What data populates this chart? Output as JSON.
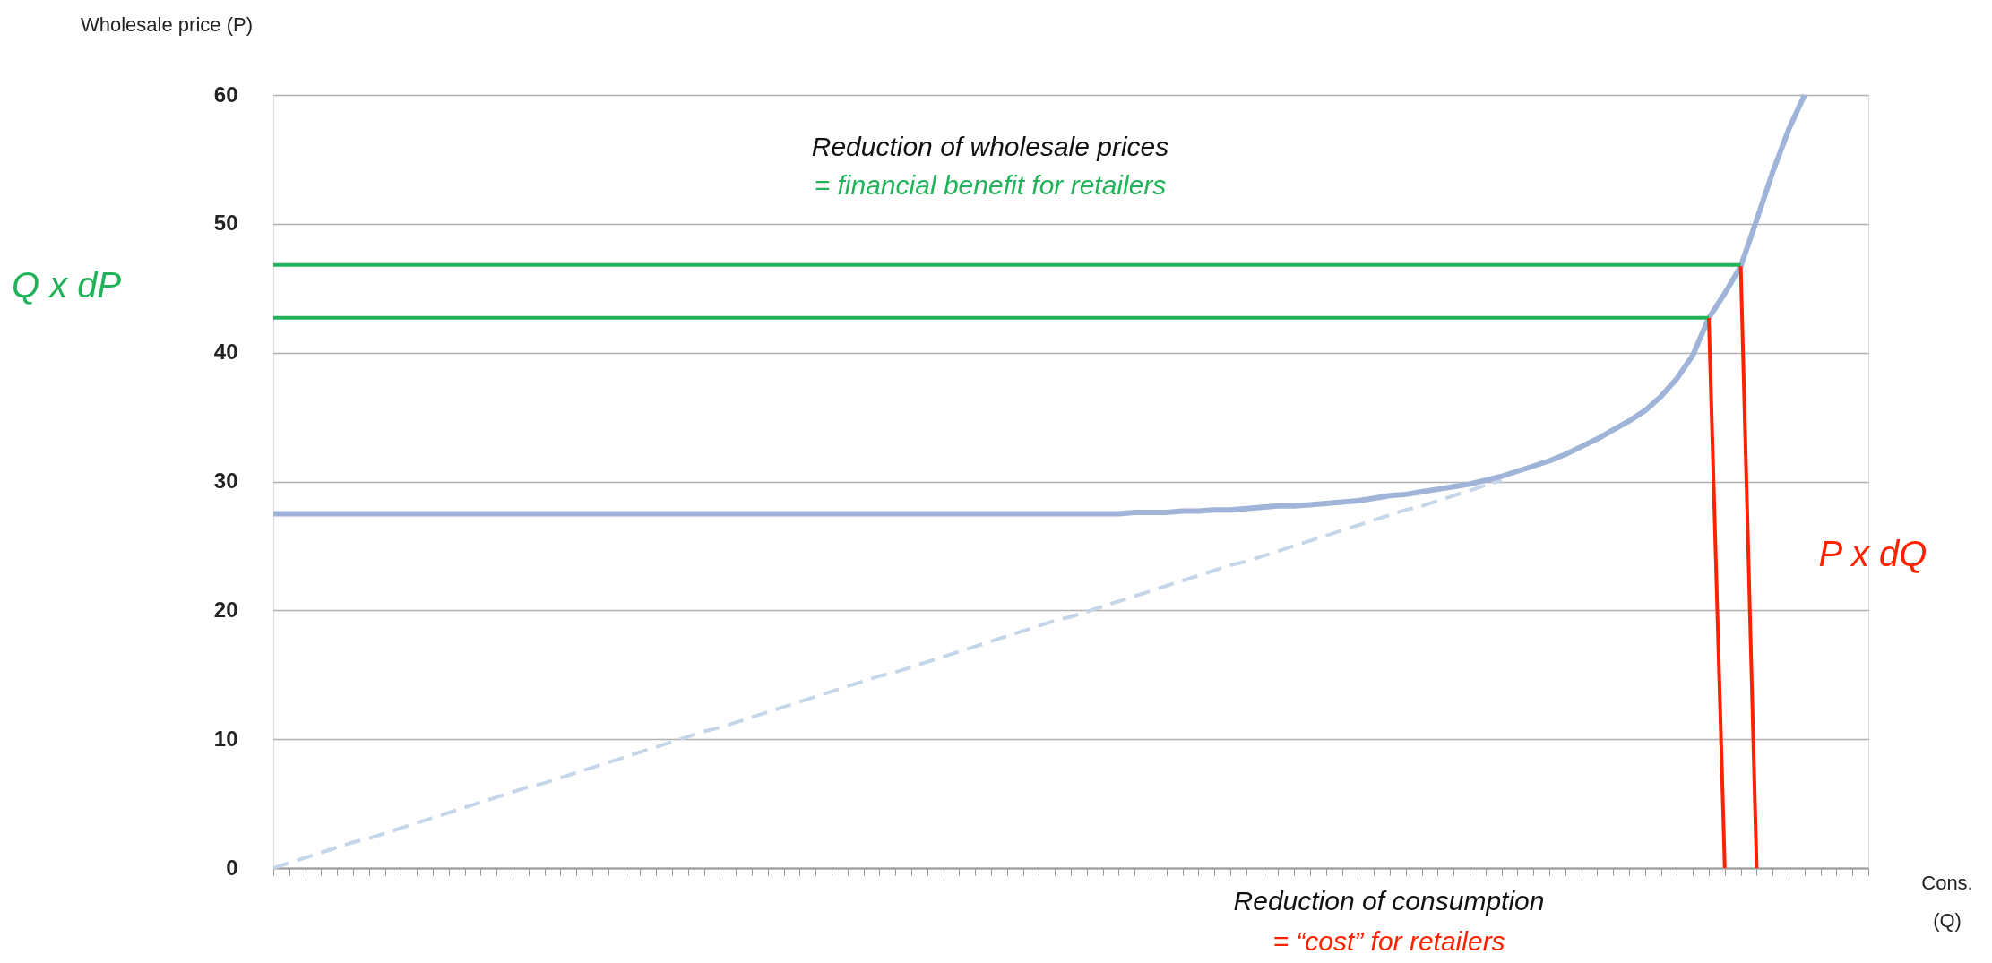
{
  "chart_data": {
    "type": "line",
    "ylabel": "Wholesale price (P)",
    "xlabel": "Cons. (Q)",
    "ylim": [
      0,
      60
    ],
    "yticks": [
      0,
      10,
      20,
      30,
      40,
      50,
      60
    ],
    "grid": "y",
    "tick_labels": "y",
    "categories": [
      null,
      null,
      null,
      null,
      null,
      null,
      null,
      null,
      null,
      null,
      null,
      null,
      null,
      null,
      null,
      null,
      null,
      null,
      null,
      null,
      null,
      null,
      null,
      null,
      null,
      null,
      null,
      null,
      null,
      null,
      null,
      null,
      null,
      null,
      null,
      null,
      null,
      null,
      null,
      null,
      null,
      null,
      null,
      null,
      null,
      null,
      null,
      null,
      null,
      null,
      null,
      null,
      null,
      null,
      null,
      null,
      null,
      null,
      null,
      null,
      null,
      null,
      null,
      null,
      null,
      null,
      null,
      null,
      null,
      null,
      null,
      null,
      null,
      null,
      null,
      null,
      null,
      null,
      null,
      null,
      null,
      null,
      null,
      null,
      null,
      null,
      null,
      null,
      null,
      null,
      null,
      null,
      null,
      null,
      null,
      null,
      null,
      null,
      null,
      null,
      null
    ],
    "series": [
      {
        "color": "#c6d6ea",
        "line_style": "dashed",
        "values": [
          0,
          0.4,
          0.8,
          1.2,
          1.6,
          2.0,
          2.3,
          2.7,
          3.1,
          3.5,
          3.9,
          4.3,
          4.7,
          5.1,
          5.5,
          5.9,
          6.3,
          6.6,
          7.0,
          7.4,
          7.8,
          8.2,
          8.6,
          9.0,
          9.4,
          9.8,
          10.2,
          10.6,
          10.9,
          11.3,
          11.7,
          12.1,
          12.5,
          12.9,
          13.3,
          13.7,
          14.1,
          14.5,
          14.9,
          15.2,
          15.6,
          16.0,
          16.4,
          16.8,
          17.2,
          17.6,
          18.0,
          18.4,
          18.8,
          19.2,
          19.5,
          19.9,
          20.3,
          20.7,
          21.1,
          21.5,
          21.9,
          22.3,
          22.7,
          23.1,
          23.5,
          23.8,
          24.2,
          24.6,
          25.0,
          25.4,
          25.8,
          26.2,
          26.6,
          27.0,
          27.4,
          27.8,
          28.1,
          28.5,
          28.9,
          29.3,
          29.7,
          30.1,
          null,
          null,
          null,
          null,
          null,
          null,
          null,
          null,
          null,
          null,
          null,
          null,
          null,
          null,
          null,
          null,
          null,
          null,
          null,
          null,
          null,
          null,
          null
        ]
      },
      {
        "color": "#9fb4d8",
        "line_style": "solid",
        "values": [
          27.5,
          27.5,
          27.5,
          27.5,
          27.5,
          27.5,
          27.5,
          27.5,
          27.5,
          27.5,
          27.5,
          27.5,
          27.5,
          27.5,
          27.5,
          27.5,
          27.5,
          27.5,
          27.5,
          27.5,
          27.5,
          27.5,
          27.5,
          27.5,
          27.5,
          27.5,
          27.5,
          27.5,
          27.5,
          27.5,
          27.5,
          27.5,
          27.5,
          27.5,
          27.5,
          27.5,
          27.5,
          27.5,
          27.5,
          27.5,
          27.5,
          27.5,
          27.5,
          27.5,
          27.5,
          27.5,
          27.5,
          27.5,
          27.5,
          27.5,
          27.5,
          27.5,
          27.5,
          27.5,
          27.6,
          27.6,
          27.6,
          27.7,
          27.7,
          27.8,
          27.8,
          27.9,
          28.0,
          28.1,
          28.1,
          28.2,
          28.3,
          28.4,
          28.5,
          28.7,
          28.9,
          29.0,
          29.2,
          29.4,
          29.6,
          29.8,
          30.1,
          30.4,
          30.8,
          31.2,
          31.6,
          32.1,
          32.7,
          33.3,
          34.0,
          34.7,
          35.5,
          36.6,
          38.0,
          39.8,
          42.7,
          44.6,
          46.7,
          50.3,
          54.0,
          57.3,
          60,
          null,
          null,
          null,
          null
        ]
      },
      {
        "color": "#22b35a",
        "line_style": "solid",
        "values": [
          46.8,
          46.8,
          46.8,
          46.8,
          46.8,
          46.8,
          46.8,
          46.8,
          46.8,
          46.8,
          46.8,
          46.8,
          46.8,
          46.8,
          46.8,
          46.8,
          46.8,
          46.8,
          46.8,
          46.8,
          46.8,
          46.8,
          46.8,
          46.8,
          46.8,
          46.8,
          46.8,
          46.8,
          46.8,
          46.8,
          46.8,
          46.8,
          46.8,
          46.8,
          46.8,
          46.8,
          46.8,
          46.8,
          46.8,
          46.8,
          46.8,
          46.8,
          46.8,
          46.8,
          46.8,
          46.8,
          46.8,
          46.8,
          46.8,
          46.8,
          46.8,
          46.8,
          46.8,
          46.8,
          46.8,
          46.8,
          46.8,
          46.8,
          46.8,
          46.8,
          46.8,
          46.8,
          46.8,
          46.8,
          46.8,
          46.8,
          46.8,
          46.8,
          46.8,
          46.8,
          46.8,
          46.8,
          46.8,
          46.8,
          46.8,
          46.8,
          46.8,
          46.8,
          46.8,
          46.8,
          46.8,
          46.8,
          46.8,
          46.8,
          46.8,
          46.8,
          46.8,
          46.8,
          46.8,
          46.8,
          46.8,
          46.8,
          46.8,
          null,
          null,
          null,
          null,
          null,
          null,
          null,
          null
        ]
      },
      {
        "color": "#22b35a",
        "line_style": "solid",
        "values": [
          42.7,
          42.7,
          42.7,
          42.7,
          42.7,
          42.7,
          42.7,
          42.7,
          42.7,
          42.7,
          42.7,
          42.7,
          42.7,
          42.7,
          42.7,
          42.7,
          42.7,
          42.7,
          42.7,
          42.7,
          42.7,
          42.7,
          42.7,
          42.7,
          42.7,
          42.7,
          42.7,
          42.7,
          42.7,
          42.7,
          42.7,
          42.7,
          42.7,
          42.7,
          42.7,
          42.7,
          42.7,
          42.7,
          42.7,
          42.7,
          42.7,
          42.7,
          42.7,
          42.7,
          42.7,
          42.7,
          42.7,
          42.7,
          42.7,
          42.7,
          42.7,
          42.7,
          42.7,
          42.7,
          42.7,
          42.7,
          42.7,
          42.7,
          42.7,
          42.7,
          42.7,
          42.7,
          42.7,
          42.7,
          42.7,
          42.7,
          42.7,
          42.7,
          42.7,
          42.7,
          42.7,
          42.7,
          42.7,
          42.7,
          42.7,
          42.7,
          42.7,
          42.7,
          42.7,
          42.7,
          42.7,
          42.7,
          42.7,
          42.7,
          42.7,
          42.7,
          42.7,
          42.7,
          42.7,
          42.7,
          42.7,
          null,
          null,
          null,
          null,
          null,
          null,
          null,
          null,
          null,
          null
        ]
      },
      {
        "color": "#ff2200",
        "line_style": "solid",
        "values": [
          null,
          null,
          null,
          null,
          null,
          null,
          null,
          null,
          null,
          null,
          null,
          null,
          null,
          null,
          null,
          null,
          null,
          null,
          null,
          null,
          null,
          null,
          null,
          null,
          null,
          null,
          null,
          null,
          null,
          null,
          null,
          null,
          null,
          null,
          null,
          null,
          null,
          null,
          null,
          null,
          null,
          null,
          null,
          null,
          null,
          null,
          null,
          null,
          null,
          null,
          null,
          null,
          null,
          null,
          null,
          null,
          null,
          null,
          null,
          null,
          null,
          null,
          null,
          null,
          null,
          null,
          null,
          null,
          null,
          null,
          null,
          null,
          null,
          null,
          null,
          null,
          null,
          null,
          null,
          null,
          null,
          null,
          null,
          null,
          null,
          null,
          null,
          null,
          null,
          null,
          42.7,
          0,
          null,
          null,
          null,
          null,
          null,
          null,
          null,
          null,
          null
        ]
      },
      {
        "color": "#ff2200",
        "line_style": "solid",
        "values": [
          null,
          null,
          null,
          null,
          null,
          null,
          null,
          null,
          null,
          null,
          null,
          null,
          null,
          null,
          null,
          null,
          null,
          null,
          null,
          null,
          null,
          null,
          null,
          null,
          null,
          null,
          null,
          null,
          null,
          null,
          null,
          null,
          null,
          null,
          null,
          null,
          null,
          null,
          null,
          null,
          null,
          null,
          null,
          null,
          null,
          null,
          null,
          null,
          null,
          null,
          null,
          null,
          null,
          null,
          null,
          null,
          null,
          null,
          null,
          null,
          null,
          null,
          null,
          null,
          null,
          null,
          null,
          null,
          null,
          null,
          null,
          null,
          null,
          null,
          null,
          null,
          null,
          null,
          null,
          null,
          null,
          null,
          null,
          null,
          null,
          null,
          null,
          null,
          null,
          null,
          null,
          null,
          46.7,
          0,
          null,
          null,
          null,
          null,
          null,
          null,
          null
        ]
      }
    ],
    "annotations": [
      "Reduction of wholesale prices",
      "= financial benefit for retailers",
      "Q x dP",
      "P x dQ",
      "Reduction of consumption",
      "= “cost” for retailers"
    ]
  }
}
